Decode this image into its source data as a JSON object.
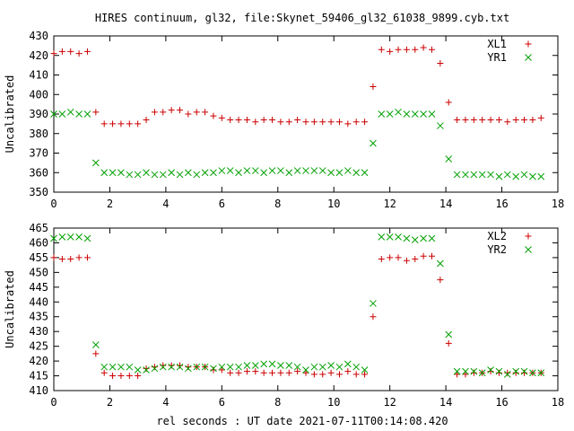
{
  "title": "HIRES continuum, gl32, file:Skynet_59406_gl32_61038_9899.cyb.txt",
  "xlabel": "rel seconds : UT date 2021-07-11T00:14:08.420",
  "chart_data": [
    {
      "type": "scatter",
      "ylabel": "Uncalibrated",
      "xlim": [
        0,
        18
      ],
      "ylim": [
        350,
        430
      ],
      "xticks": [
        0,
        2,
        4,
        6,
        8,
        10,
        12,
        14,
        16,
        18
      ],
      "yticks": [
        350,
        360,
        370,
        380,
        390,
        400,
        410,
        420,
        430
      ],
      "legend": "top-right",
      "series": [
        {
          "name": "XL1",
          "marker": "plus",
          "color": "#cc0000",
          "x": [
            0.0,
            0.3,
            0.6,
            0.9,
            1.2,
            1.5,
            1.8,
            2.1,
            2.4,
            2.7,
            3.0,
            3.3,
            3.6,
            3.9,
            4.2,
            4.5,
            4.8,
            5.1,
            5.4,
            5.7,
            6.0,
            6.3,
            6.6,
            6.9,
            7.2,
            7.5,
            7.8,
            8.1,
            8.4,
            8.7,
            9.0,
            9.3,
            9.6,
            9.9,
            10.2,
            10.5,
            10.8,
            11.1,
            11.4,
            11.7,
            12.0,
            12.3,
            12.6,
            12.9,
            13.2,
            13.5,
            13.8,
            14.1,
            14.4,
            14.7,
            15.0,
            15.3,
            15.6,
            15.9,
            16.2,
            16.5,
            16.8,
            17.1,
            17.4
          ],
          "y": [
            421,
            422,
            422,
            421,
            422,
            391,
            385,
            385,
            385,
            385,
            385,
            387,
            391,
            391,
            392,
            392,
            390,
            391,
            391,
            389,
            388,
            387,
            387,
            387,
            386,
            387,
            387,
            386,
            386,
            387,
            386,
            386,
            386,
            386,
            386,
            385,
            386,
            386,
            404,
            423,
            422,
            423,
            423,
            423,
            424,
            423,
            416,
            396,
            387,
            387,
            387,
            387,
            387,
            387,
            386,
            387,
            387,
            387,
            388
          ]
        },
        {
          "name": "YR1",
          "marker": "cross",
          "color": "#00a000",
          "x": [
            0.0,
            0.3,
            0.6,
            0.9,
            1.2,
            1.5,
            1.8,
            2.1,
            2.4,
            2.7,
            3.0,
            3.3,
            3.6,
            3.9,
            4.2,
            4.5,
            4.8,
            5.1,
            5.4,
            5.7,
            6.0,
            6.3,
            6.6,
            6.9,
            7.2,
            7.5,
            7.8,
            8.1,
            8.4,
            8.7,
            9.0,
            9.3,
            9.6,
            9.9,
            10.2,
            10.5,
            10.8,
            11.1,
            11.4,
            11.7,
            12.0,
            12.3,
            12.6,
            12.9,
            13.2,
            13.5,
            13.8,
            14.1,
            14.4,
            14.7,
            15.0,
            15.3,
            15.6,
            15.9,
            16.2,
            16.5,
            16.8,
            17.1,
            17.4
          ],
          "y": [
            390,
            390,
            391,
            390,
            390,
            365,
            360,
            360,
            360,
            359,
            359,
            360,
            359,
            359,
            360,
            359,
            360,
            359,
            360,
            360,
            361,
            361,
            360,
            361,
            361,
            360,
            361,
            361,
            360,
            361,
            361,
            361,
            361,
            360,
            360,
            361,
            360,
            360,
            375,
            390,
            390,
            391,
            390,
            390,
            390,
            390,
            384,
            367,
            359,
            359,
            359,
            359,
            359,
            358,
            359,
            358,
            359,
            358,
            358
          ]
        }
      ]
    },
    {
      "type": "scatter",
      "ylabel": "Uncalibrated",
      "xlim": [
        0,
        18
      ],
      "ylim": [
        410,
        465
      ],
      "xticks": [
        0,
        2,
        4,
        6,
        8,
        10,
        12,
        14,
        16,
        18
      ],
      "yticks": [
        410,
        415,
        420,
        425,
        430,
        435,
        440,
        445,
        450,
        455,
        460,
        465
      ],
      "legend": "top-right",
      "series": [
        {
          "name": "XL2",
          "marker": "plus",
          "color": "#cc0000",
          "x": [
            0.0,
            0.3,
            0.6,
            0.9,
            1.2,
            1.5,
            1.8,
            2.1,
            2.4,
            2.7,
            3.0,
            3.3,
            3.6,
            3.9,
            4.2,
            4.5,
            4.8,
            5.1,
            5.4,
            5.7,
            6.0,
            6.3,
            6.6,
            6.9,
            7.2,
            7.5,
            7.8,
            8.1,
            8.4,
            8.7,
            9.0,
            9.3,
            9.6,
            9.9,
            10.2,
            10.5,
            10.8,
            11.1,
            11.4,
            11.7,
            12.0,
            12.3,
            12.6,
            12.9,
            13.2,
            13.5,
            13.8,
            14.1,
            14.4,
            14.7,
            15.0,
            15.3,
            15.6,
            15.9,
            16.2,
            16.5,
            16.8,
            17.1,
            17.4
          ],
          "y": [
            455,
            454.5,
            454.5,
            455,
            455,
            422.5,
            416,
            415,
            415,
            415,
            415,
            417.5,
            418,
            418.5,
            418.5,
            418.5,
            418,
            418,
            418,
            417,
            417,
            416,
            416,
            416.5,
            416.5,
            416,
            416,
            416,
            416,
            416.5,
            416,
            415.5,
            415.5,
            416,
            415.5,
            416.5,
            415.5,
            415.5,
            435,
            454.5,
            455,
            455,
            454,
            454.5,
            455.5,
            455.5,
            447.5,
            426,
            415.5,
            415.5,
            416,
            416,
            416.5,
            416,
            416,
            416,
            416,
            416,
            416
          ]
        },
        {
          "name": "YR2",
          "marker": "cross",
          "color": "#00a000",
          "x": [
            0.0,
            0.3,
            0.6,
            0.9,
            1.2,
            1.5,
            1.8,
            2.1,
            2.4,
            2.7,
            3.0,
            3.3,
            3.6,
            3.9,
            4.2,
            4.5,
            4.8,
            5.1,
            5.4,
            5.7,
            6.0,
            6.3,
            6.6,
            6.9,
            7.2,
            7.5,
            7.8,
            8.1,
            8.4,
            8.7,
            9.0,
            9.3,
            9.6,
            9.9,
            10.2,
            10.5,
            10.8,
            11.1,
            11.4,
            11.7,
            12.0,
            12.3,
            12.6,
            12.9,
            13.2,
            13.5,
            13.8,
            14.1,
            14.4,
            14.7,
            15.0,
            15.3,
            15.6,
            15.9,
            16.2,
            16.5,
            16.8,
            17.1,
            17.4
          ],
          "y": [
            461.5,
            462,
            462,
            462,
            461.5,
            425.5,
            418,
            418,
            418,
            418,
            417,
            417,
            417.5,
            418,
            418,
            418,
            417.5,
            418,
            418,
            417.5,
            418,
            418,
            418,
            418.5,
            418.5,
            419,
            419,
            418.5,
            418.5,
            418,
            417,
            418,
            418,
            418.5,
            418,
            419,
            418,
            417,
            439.5,
            462,
            462,
            462,
            461.5,
            461,
            461.5,
            461.5,
            453,
            429,
            416.5,
            416.5,
            416.5,
            416,
            417,
            416.5,
            415.5,
            416.5,
            416.5,
            416,
            416
          ]
        }
      ]
    }
  ]
}
